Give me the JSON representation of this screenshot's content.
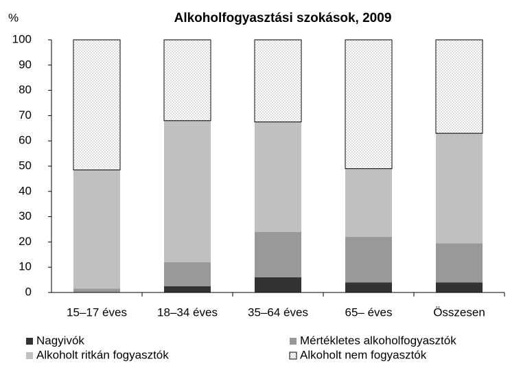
{
  "chart_data": {
    "type": "stacked_bar",
    "title": "Alkoholfogyasztási szokások, 2009",
    "y_label": "%",
    "categories": [
      "15–17 éves",
      "18–34 éves",
      "35–64 éves",
      "65– éves",
      "Összesen"
    ],
    "series": [
      {
        "name": "Nagyivók",
        "color": "#333333",
        "values": [
          0,
          2.5,
          6,
          4,
          4
        ]
      },
      {
        "name": "Mértékletes alkoholfogyasztók",
        "color": "#999999",
        "values": [
          1.5,
          9.5,
          18,
          18,
          15.5
        ]
      },
      {
        "name": "Alkoholt ritkán fogyasztók",
        "color": "#c0c0c0",
        "values": [
          47,
          56,
          43.5,
          27,
          43.5
        ]
      },
      {
        "name": "Alkoholt nem fogyasztók",
        "color": "#ffffff",
        "pattern": "dotted",
        "values": [
          51.5,
          32,
          32.5,
          51,
          37
        ]
      }
    ],
    "ylim": [
      0,
      100
    ],
    "yticks": [
      0,
      10,
      20,
      30,
      40,
      50,
      60,
      70,
      80,
      90,
      100
    ],
    "legend": "bottom"
  }
}
